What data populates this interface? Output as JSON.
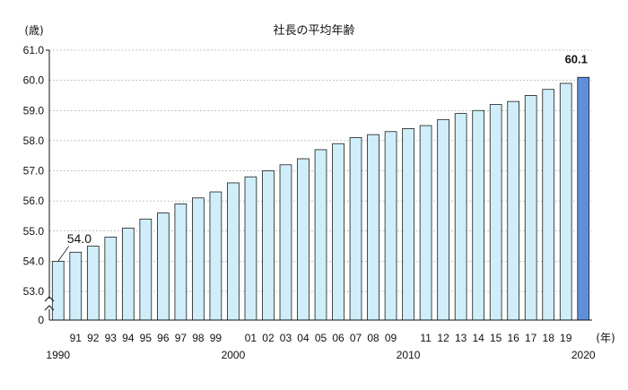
{
  "chart_data": {
    "type": "bar",
    "title": "社長の平均年齢",
    "ylabel": "(歳)",
    "xlabel": "(年)",
    "ylim": [
      52,
      61
    ],
    "axis_break": true,
    "y_ticks": [
      "61.0",
      "60.0",
      "59.0",
      "58.0",
      "57.0",
      "56.0",
      "55.0",
      "54.0",
      "53.0",
      "0"
    ],
    "grid": true,
    "highlight_color": "#5f8fdb",
    "bar_color": "#cfeefa",
    "categories": [
      "1990",
      "91",
      "92",
      "93",
      "94",
      "95",
      "96",
      "97",
      "98",
      "99",
      "2000",
      "01",
      "02",
      "03",
      "04",
      "05",
      "06",
      "07",
      "08",
      "09",
      "2010",
      "11",
      "12",
      "13",
      "14",
      "15",
      "16",
      "17",
      "18",
      "19",
      "2020"
    ],
    "tick_labels_top": [
      "",
      "91",
      "92",
      "93",
      "94",
      "95",
      "96",
      "97",
      "98",
      "99",
      "",
      "01",
      "02",
      "03",
      "04",
      "05",
      "06",
      "07",
      "08",
      "09",
      "",
      "11",
      "12",
      "13",
      "14",
      "15",
      "16",
      "17",
      "18",
      "19",
      ""
    ],
    "tick_labels_bottom": [
      "1990",
      "",
      "",
      "",
      "",
      "",
      "",
      "",
      "",
      "",
      "2000",
      "",
      "",
      "",
      "",
      "",
      "",
      "",
      "",
      "",
      "2010",
      "",
      "",
      "",
      "",
      "",
      "",
      "",
      "",
      "",
      "2020"
    ],
    "values": [
      54.0,
      54.3,
      54.5,
      54.8,
      55.1,
      55.4,
      55.6,
      55.9,
      56.1,
      56.3,
      56.6,
      56.8,
      57.0,
      57.2,
      57.4,
      57.7,
      57.9,
      58.1,
      58.2,
      58.3,
      58.4,
      58.5,
      58.7,
      58.9,
      59.0,
      59.2,
      59.3,
      59.5,
      59.7,
      59.9,
      60.1
    ],
    "annotations": [
      {
        "label": "54.0",
        "index": 0
      },
      {
        "label": "60.1",
        "index": 30
      }
    ]
  }
}
